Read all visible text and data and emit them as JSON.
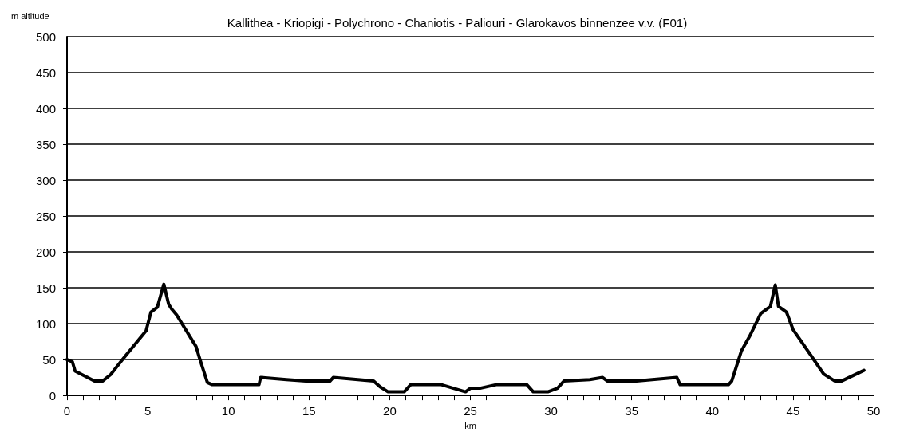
{
  "chart_data": {
    "type": "line",
    "title": "Kallithea - Kriopigi - Polychrono - Chaniotis - Paliouri - Glarokavos binnenzee v.v. (F01)",
    "xlabel": "km",
    "ylabel": "m altitude",
    "x": [
      0,
      0.33,
      0.5,
      1.7,
      2.2,
      2.7,
      3.4,
      4.9,
      5.2,
      5.6,
      6,
      6.3,
      6.5,
      6.8,
      8,
      8.2,
      8.7,
      9,
      11.9,
      12,
      13.6,
      14.8,
      16.3,
      16.5,
      19,
      19.4,
      19.9,
      20.9,
      21.3,
      23.2,
      24.7,
      25,
      25.6,
      26.6,
      28.5,
      28.9,
      29.8,
      30.4,
      30.8,
      32.4,
      33.2,
      33.5,
      35.3,
      37.8,
      38,
      41,
      41.2,
      41.8,
      42.3,
      43,
      43.6,
      43.9,
      44.1,
      44.6,
      45,
      46.9,
      47.6,
      48,
      49.4
    ],
    "series": [
      {
        "color": "#000000",
        "values": [
          50,
          47,
          34,
          20,
          20,
          29,
          49,
          90,
          116,
          123,
          155,
          127,
          120,
          112,
          68,
          53,
          18,
          15,
          15,
          25,
          22,
          20,
          20,
          25,
          20,
          12,
          5,
          5,
          15,
          15,
          5,
          10,
          10,
          15,
          15,
          5,
          5,
          10,
          20,
          22,
          25,
          20,
          20,
          25,
          15,
          15,
          20,
          62,
          82,
          114,
          124,
          154,
          124,
          116,
          92,
          30,
          20,
          20,
          35
        ]
      }
    ],
    "xlim": [
      0,
      50
    ],
    "xticks": [
      0,
      {
        "value": 1,
        "label": null
      },
      {
        "value": 2,
        "label": null
      },
      {
        "value": 3,
        "label": null
      },
      {
        "value": 4,
        "label": null
      },
      5,
      {
        "value": 6,
        "label": null
      },
      {
        "value": 7,
        "label": null
      },
      {
        "value": 8,
        "label": null
      },
      {
        "value": 9,
        "label": null
      },
      10,
      {
        "value": 11,
        "label": null
      },
      {
        "value": 12,
        "label": null
      },
      {
        "value": 13,
        "label": null
      },
      {
        "value": 14,
        "label": null
      },
      15,
      {
        "value": 16,
        "label": null
      },
      {
        "value": 17,
        "label": null
      },
      {
        "value": 18,
        "label": null
      },
      {
        "value": 19,
        "label": null
      },
      20,
      {
        "value": 21,
        "label": null
      },
      {
        "value": 22,
        "label": null
      },
      {
        "value": 23,
        "label": null
      },
      {
        "value": 24,
        "label": null
      },
      25,
      {
        "value": 26,
        "label": null
      },
      {
        "value": 27,
        "label": null
      },
      {
        "value": 28,
        "label": null
      },
      {
        "value": 29,
        "label": null
      },
      30,
      {
        "value": 31,
        "label": null
      },
      {
        "value": 32,
        "label": null
      },
      {
        "value": 33,
        "label": null
      },
      {
        "value": 34,
        "label": null
      },
      35,
      {
        "value": 36,
        "label": null
      },
      {
        "value": 37,
        "label": null
      },
      {
        "value": 38,
        "label": null
      },
      {
        "value": 39,
        "label": null
      },
      40,
      {
        "value": 41,
        "label": null
      },
      {
        "value": 42,
        "label": null
      },
      {
        "value": 43,
        "label": null
      },
      {
        "value": 44,
        "label": null
      },
      45,
      {
        "value": 46,
        "label": null
      },
      {
        "value": 47,
        "label": null
      },
      {
        "value": 48,
        "label": null
      },
      {
        "value": 49,
        "label": null
      },
      50
    ],
    "ylim": [
      0,
      500
    ],
    "yticks": [
      0,
      50,
      100,
      150,
      200,
      250,
      300,
      350,
      400,
      450,
      500
    ],
    "grid": "y",
    "marker": "none",
    "line_style": "solid"
  }
}
